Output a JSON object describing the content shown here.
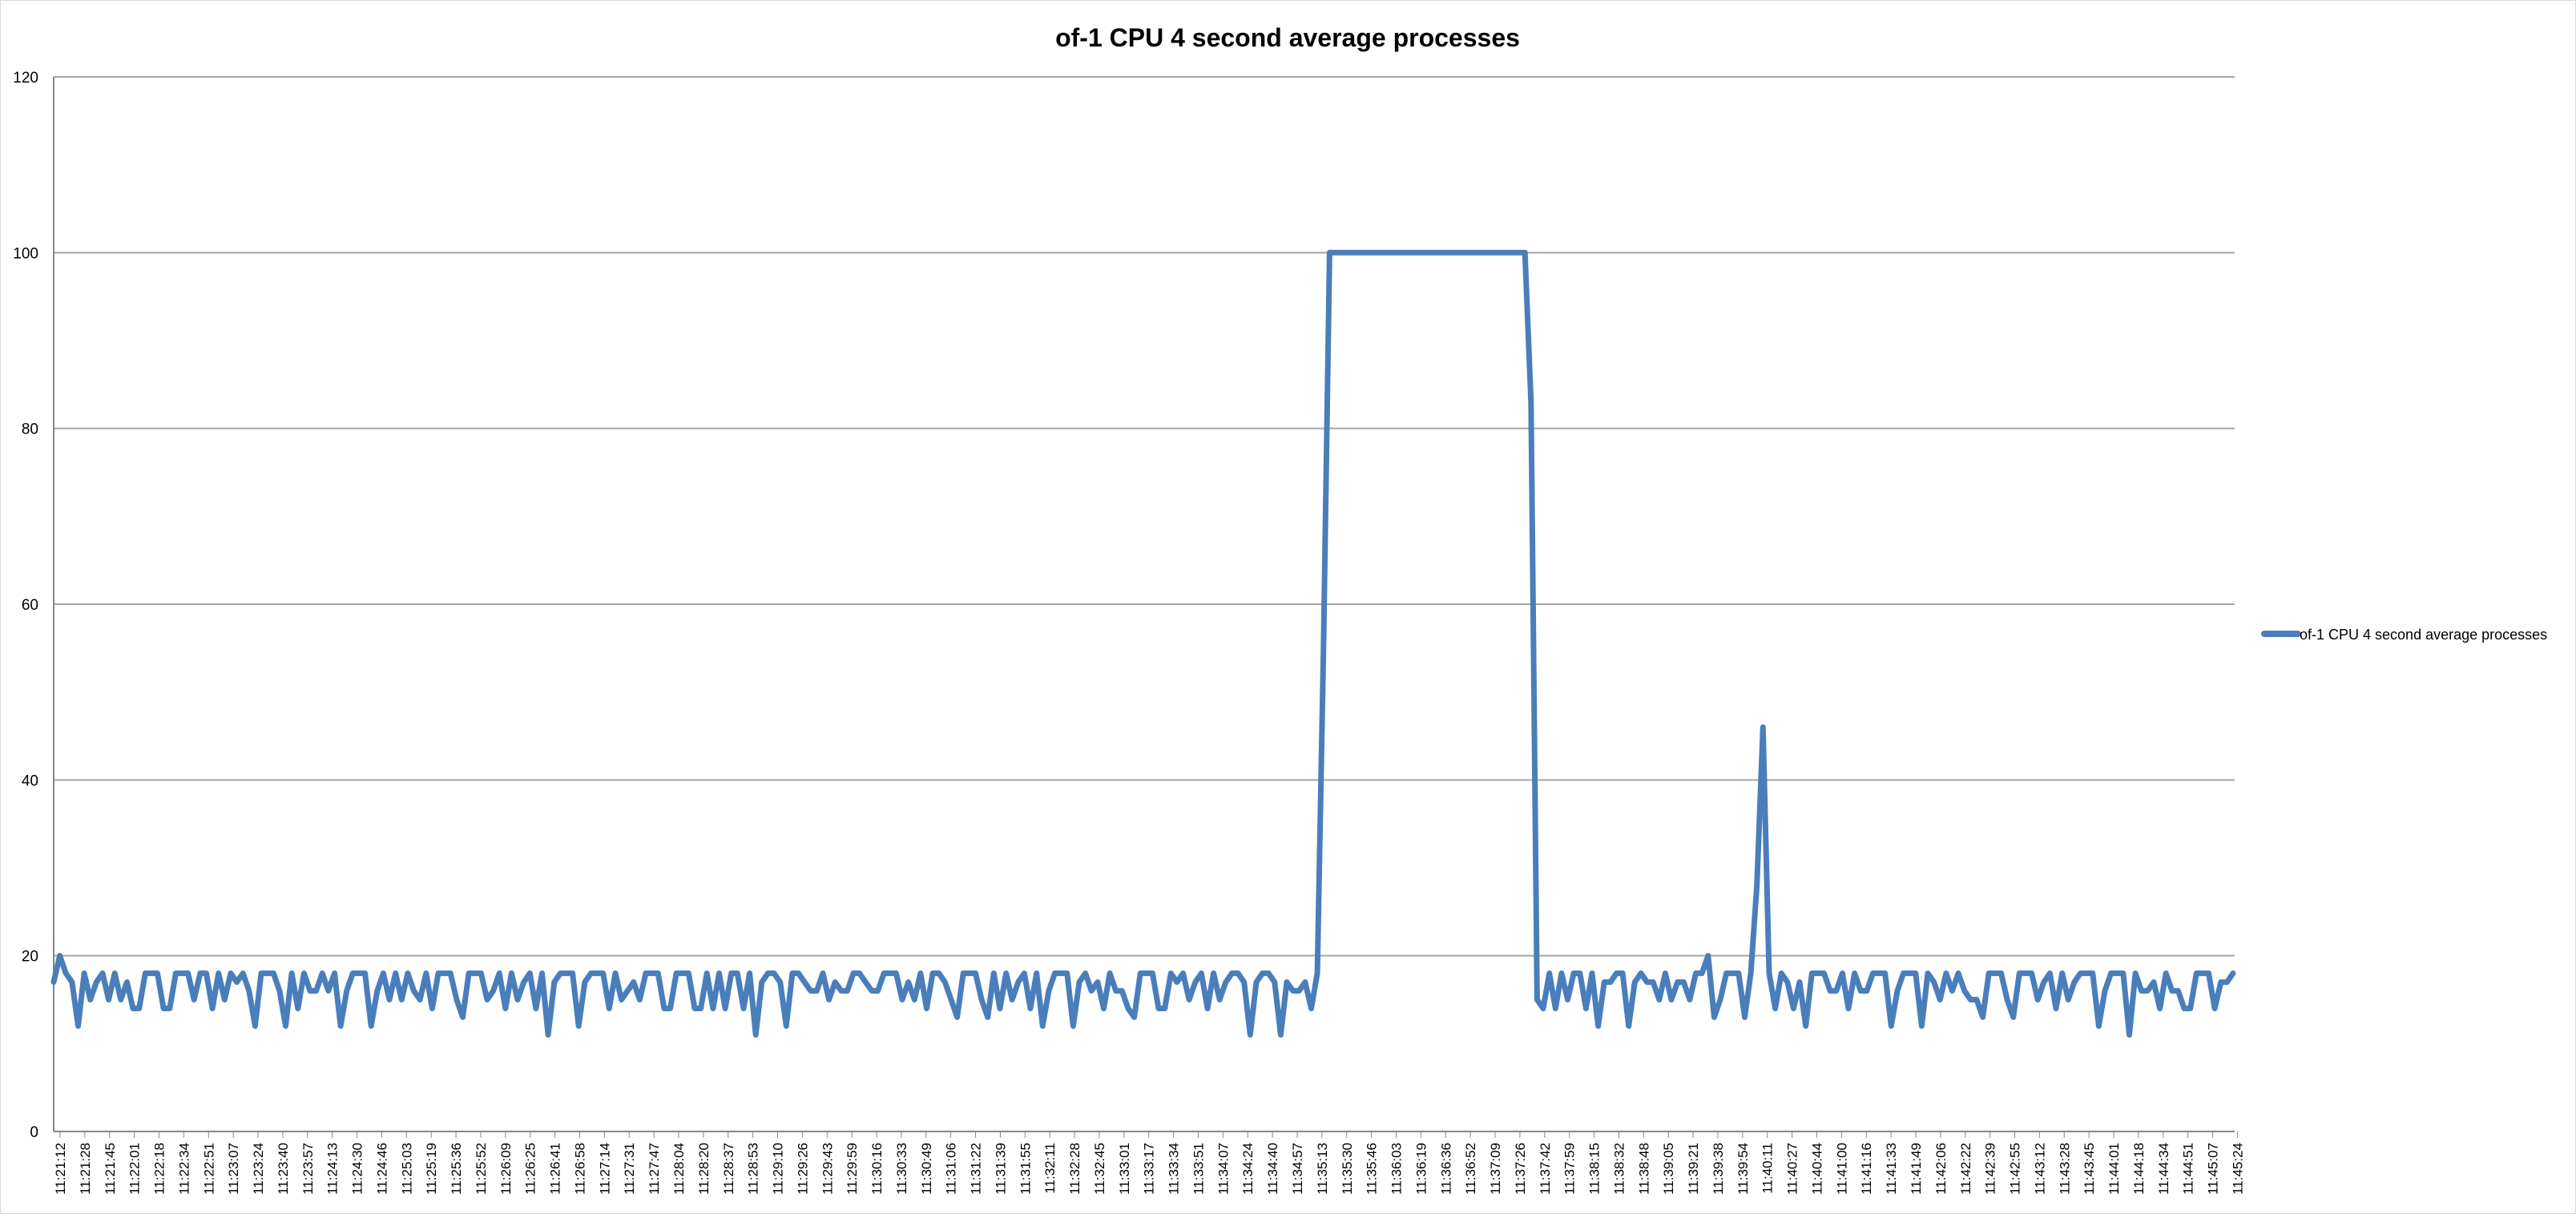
{
  "chart_data": {
    "type": "line",
    "title": "of-1 CPU 4 second average processes",
    "xlabel": "",
    "ylabel": "",
    "ylim": [
      0,
      120
    ],
    "yticks": [
      0,
      20,
      40,
      60,
      80,
      100,
      120
    ],
    "grid": true,
    "legend_position": "right",
    "colors": {
      "series": "#4a7ebb",
      "grid": "#a6a6a6",
      "axis": "#868686"
    },
    "x_tick_labels": [
      "11:21:12",
      "11:21:28",
      "11:21:45",
      "11:22:01",
      "11:22:18",
      "11:22:34",
      "11:22:51",
      "11:23:07",
      "11:23:24",
      "11:23:40",
      "11:23:57",
      "11:24:13",
      "11:24:30",
      "11:24:46",
      "11:25:03",
      "11:25:19",
      "11:25:36",
      "11:25:52",
      "11:26:09",
      "11:26:25",
      "11:26:41",
      "11:26:58",
      "11:27:14",
      "11:27:31",
      "11:27:47",
      "11:28:04",
      "11:28:20",
      "11:28:37",
      "11:28:53",
      "11:29:10",
      "11:29:26",
      "11:29:43",
      "11:29:59",
      "11:30:16",
      "11:30:33",
      "11:30:49",
      "11:31:06",
      "11:31:22",
      "11:31:39",
      "11:31:55",
      "11:32:11",
      "11:32:28",
      "11:32:45",
      "11:33:01",
      "11:33:17",
      "11:33:34",
      "11:33:51",
      "11:34:07",
      "11:34:24",
      "11:34:40",
      "11:34:57",
      "11:35:13",
      "11:35:30",
      "11:35:46",
      "11:36:03",
      "11:36:19",
      "11:36:36",
      "11:36:52",
      "11:37:09",
      "11:37:26",
      "11:37:42",
      "11:37:59",
      "11:38:15",
      "11:38:32",
      "11:38:48",
      "11:39:05",
      "11:39:21",
      "11:39:38",
      "11:39:54",
      "11:40:11",
      "11:40:27",
      "11:40:44",
      "11:41:00",
      "11:41:16",
      "11:41:33",
      "11:41:49",
      "11:42:06",
      "11:42:22",
      "11:42:39",
      "11:42:55",
      "11:43:12",
      "11:43:28",
      "11:43:45",
      "11:44:01",
      "11:44:18",
      "11:44:34",
      "11:44:51",
      "11:45:07",
      "11:45:24"
    ],
    "series": [
      {
        "name": "of-1 CPU 4 second average processes",
        "values": [
          17,
          20,
          18,
          17,
          12,
          18,
          15,
          17,
          18,
          15,
          18,
          15,
          17,
          14,
          14,
          18,
          18,
          18,
          14,
          14,
          18,
          18,
          18,
          15,
          18,
          18,
          14,
          18,
          15,
          18,
          17,
          18,
          16,
          12,
          18,
          18,
          18,
          16,
          12,
          18,
          14,
          18,
          16,
          16,
          18,
          16,
          18,
          12,
          16,
          18,
          18,
          18,
          12,
          16,
          18,
          15,
          18,
          15,
          18,
          16,
          15,
          18,
          14,
          18,
          18,
          18,
          15,
          13,
          18,
          18,
          18,
          15,
          16,
          18,
          14,
          18,
          15,
          17,
          18,
          14,
          18,
          11,
          17,
          18,
          18,
          18,
          12,
          17,
          18,
          18,
          18,
          14,
          18,
          15,
          16,
          17,
          15,
          18,
          18,
          18,
          14,
          14,
          18,
          18,
          18,
          14,
          14,
          18,
          14,
          18,
          14,
          18,
          18,
          14,
          18,
          11,
          17,
          18,
          18,
          17,
          12,
          18,
          18,
          17,
          16,
          16,
          18,
          15,
          17,
          16,
          16,
          18,
          18,
          17,
          16,
          16,
          18,
          18,
          18,
          15,
          17,
          15,
          18,
          14,
          18,
          18,
          17,
          15,
          13,
          18,
          18,
          18,
          15,
          13,
          18,
          14,
          18,
          15,
          17,
          18,
          14,
          18,
          12,
          16,
          18,
          18,
          18,
          12,
          17,
          18,
          16,
          17,
          14,
          18,
          16,
          16,
          14,
          13,
          18,
          18,
          18,
          14,
          14,
          18,
          17,
          18,
          15,
          17,
          18,
          14,
          18,
          15,
          17,
          18,
          18,
          17,
          11,
          17,
          18,
          18,
          17,
          11,
          17,
          16,
          16,
          17,
          14,
          18,
          55,
          100,
          100,
          100,
          100,
          100,
          100,
          100,
          100,
          100,
          100,
          100,
          100,
          100,
          100,
          100,
          100,
          100,
          100,
          100,
          100,
          100,
          100,
          100,
          100,
          100,
          100,
          100,
          100,
          100,
          100,
          100,
          100,
          100,
          83,
          15,
          14,
          18,
          14,
          18,
          15,
          18,
          18,
          14,
          18,
          12,
          17,
          17,
          18,
          18,
          12,
          17,
          18,
          17,
          17,
          15,
          18,
          15,
          17,
          17,
          15,
          18,
          18,
          20,
          13,
          15,
          18,
          18,
          18,
          13,
          18,
          28,
          46,
          18,
          14,
          18,
          17,
          14,
          17,
          12,
          18,
          18,
          18,
          16,
          16,
          18,
          14,
          18,
          16,
          16,
          18,
          18,
          18,
          12,
          16,
          18,
          18,
          18,
          12,
          18,
          17,
          15,
          18,
          16,
          18,
          16,
          15,
          15,
          13,
          18,
          18,
          18,
          15,
          13,
          18,
          18,
          18,
          15,
          17,
          18,
          14,
          18,
          15,
          17,
          18,
          18,
          18,
          12,
          16,
          18,
          18,
          18,
          11,
          18,
          16,
          16,
          17,
          14,
          18,
          16,
          16,
          14,
          14,
          18,
          18,
          18,
          14,
          17,
          17,
          18
        ]
      }
    ]
  }
}
